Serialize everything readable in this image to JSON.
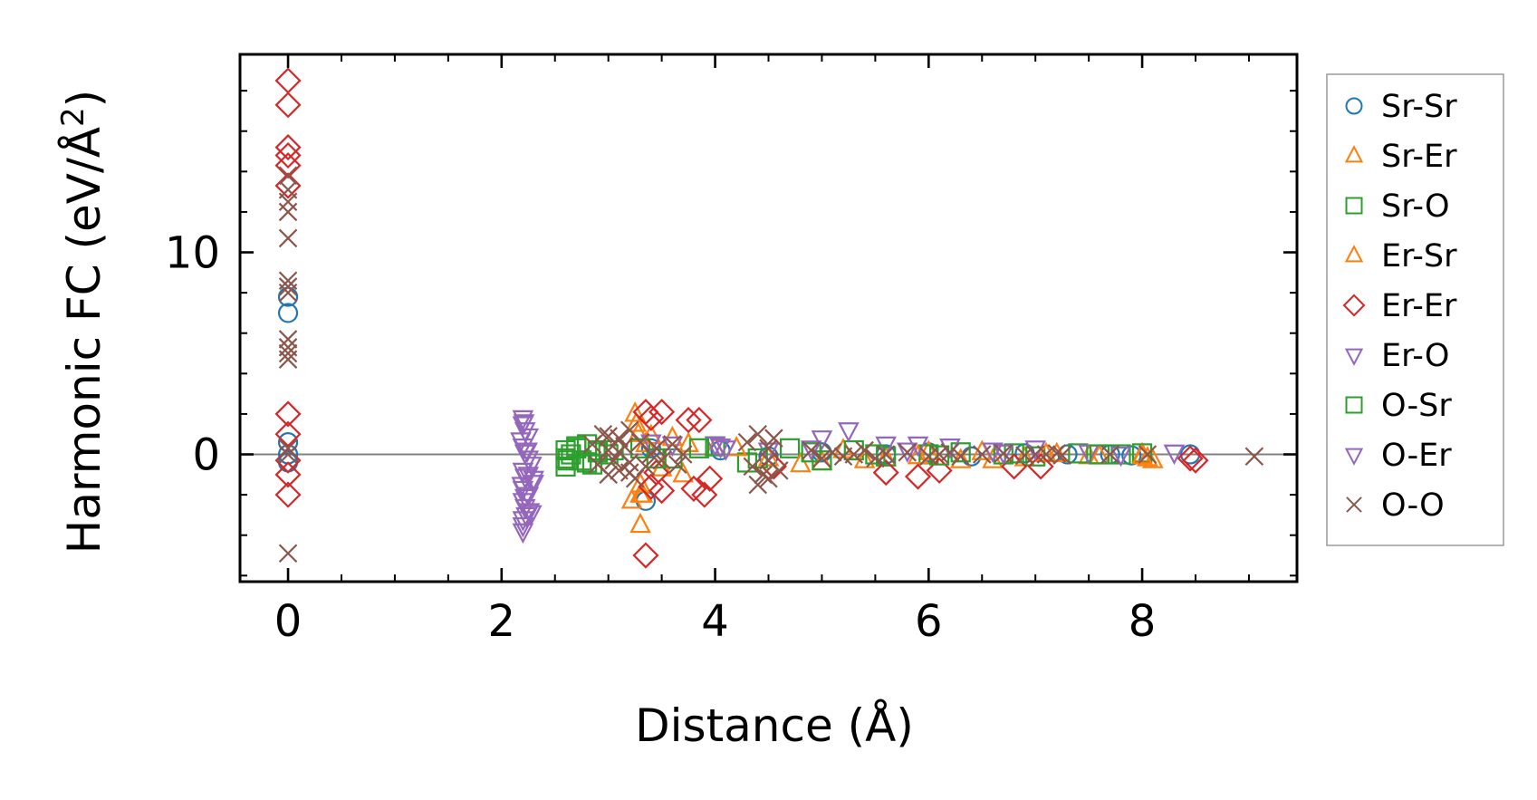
{
  "chart_data": {
    "type": "scatter",
    "xlabel": "Distance (Å)",
    "ylabel": "Harmonic FC (eV/Å²)",
    "ylabel_parts": [
      "Harmonic FC (eV/Å",
      "2",
      ")"
    ],
    "xlim": [
      -0.45,
      9.45
    ],
    "ylim": [
      -6.3,
      19.8
    ],
    "xticks": [
      0,
      2,
      4,
      6,
      8
    ],
    "xtick_labels": [
      "0",
      "2",
      "4",
      "6",
      "8"
    ],
    "yticks": [
      0,
      10
    ],
    "ytick_labels": [
      "0",
      "10"
    ],
    "x_minor_step": 0.5,
    "y_minor_step": 2,
    "zero_line": true,
    "grid": false,
    "legend_position": "outside-right",
    "series": [
      {
        "name": "Sr-Sr",
        "marker": "circle",
        "color": "#1f77b4",
        "x": [
          0,
          0,
          0,
          0,
          0,
          3.35,
          3.4,
          4.05,
          4.5,
          5.0,
          5.6,
          6.0,
          6.4,
          6.9,
          7.3,
          7.7,
          7.9,
          8.45
        ],
        "y": [
          7.8,
          7.0,
          0.6,
          0.0,
          -0.4,
          -2.3,
          0.3,
          0.2,
          -0.1,
          0.1,
          0.0,
          0.1,
          -0.1,
          0.05,
          0.0,
          0.0,
          -0.05,
          0.0
        ]
      },
      {
        "name": "Sr-Er",
        "marker": "triangle-up",
        "color": "#ff7f0e",
        "x": [
          3.25,
          3.28,
          3.3,
          3.32,
          3.22,
          3.3,
          3.35,
          3.6,
          3.7,
          4.0,
          4.5,
          5.0,
          5.2,
          5.6,
          6.0,
          6.3,
          6.6,
          6.9,
          7.2,
          7.5,
          8.0,
          8.05,
          8.1
        ],
        "y": [
          2.0,
          1.0,
          -1.5,
          -2.0,
          -2.3,
          -3.5,
          0.5,
          0.8,
          -1.0,
          0.3,
          -0.2,
          -0.4,
          0.2,
          -0.2,
          0.1,
          -0.3,
          -0.3,
          -0.2,
          0.0,
          -0.1,
          0.0,
          -0.2,
          -0.3
        ]
      },
      {
        "name": "Sr-O",
        "marker": "square",
        "color": "#2ca02c",
        "x": [
          2.6,
          2.6,
          2.6,
          2.65,
          2.7,
          2.75,
          2.8,
          2.85,
          2.9,
          3.0,
          3.3,
          3.6,
          4.0,
          4.3,
          4.7,
          5.0,
          5.3,
          5.6,
          6.0,
          6.3,
          6.7,
          7.0,
          7.4,
          7.8,
          8.0
        ],
        "y": [
          0.2,
          -0.2,
          -0.6,
          0.0,
          0.3,
          -0.3,
          0.5,
          -0.5,
          0.2,
          0.0,
          0.3,
          -0.2,
          0.4,
          -0.4,
          0.3,
          -0.3,
          0.2,
          -0.1,
          0.0,
          0.1,
          0.0,
          -0.1,
          0.05,
          0.0,
          0.05
        ]
      },
      {
        "name": "Er-Sr",
        "marker": "triangle-up",
        "color": "#ff7f0e",
        "x": [
          3.26,
          3.3,
          3.4,
          3.5,
          3.75,
          4.2,
          4.8,
          5.4,
          5.9,
          6.5,
          7.1,
          7.6,
          8.0
        ],
        "y": [
          1.5,
          -2.0,
          0.9,
          -0.7,
          0.5,
          0.3,
          -0.5,
          -0.3,
          -0.1,
          0.1,
          0.0,
          -0.1,
          -0.1
        ]
      },
      {
        "name": "Er-Er",
        "marker": "diamond",
        "color": "#d62728",
        "x": [
          0,
          0,
          0,
          0,
          0,
          0,
          0,
          0,
          0,
          0,
          0,
          3.35,
          3.35,
          3.4,
          3.45,
          3.5,
          3.4,
          3.5,
          3.75,
          3.85,
          3.95,
          3.8,
          3.9,
          4.55,
          5.6,
          5.9,
          6.1,
          6.8,
          7.05,
          8.45,
          8.5
        ],
        "y": [
          18.5,
          17.3,
          15.2,
          14.8,
          14.3,
          13.3,
          2.0,
          1.0,
          -0.3,
          -1.0,
          -2.0,
          -5.0,
          2.1,
          1.8,
          -0.9,
          -1.8,
          -1.6,
          2.1,
          1.7,
          1.7,
          -1.2,
          -1.7,
          -2.0,
          -0.6,
          -0.9,
          -1.1,
          -0.8,
          -0.6,
          -0.6,
          -0.2,
          -0.3
        ]
      },
      {
        "name": "Er-O",
        "marker": "triangle-down",
        "color": "#9467bd",
        "x": [
          2.2,
          2.2,
          2.22,
          2.25,
          2.18,
          2.2,
          2.22,
          2.25,
          2.28,
          2.2,
          2.22,
          2.3,
          2.2,
          2.25,
          2.2,
          2.22,
          2.28,
          2.3,
          2.2,
          2.25,
          2.2,
          2.22,
          2.2,
          3.4,
          3.6,
          4.0,
          4.1,
          4.5,
          5.0,
          5.25,
          5.6,
          5.9,
          6.2,
          6.6,
          7.0,
          7.5,
          8.3
        ],
        "y": [
          1.8,
          1.5,
          1.2,
          0.9,
          0.7,
          0.4,
          0.1,
          -0.2,
          -0.5,
          -0.8,
          -1.1,
          -1.4,
          -1.7,
          -2.0,
          -2.3,
          -2.6,
          -2.9,
          -1.2,
          -3.2,
          -1.0,
          -3.5,
          -2.1,
          -3.8,
          0.6,
          0.5,
          0.5,
          0.3,
          0.2,
          0.8,
          1.2,
          0.5,
          0.5,
          0.4,
          0.2,
          0.3,
          0.1,
          0.1
        ]
      },
      {
        "name": "O-Sr",
        "marker": "square",
        "color": "#2ca02c",
        "x": [
          2.62,
          2.7,
          2.8,
          2.9,
          3.05,
          3.45,
          3.85,
          4.4,
          4.9,
          5.5,
          6.1,
          6.8,
          7.6
        ],
        "y": [
          -0.3,
          0.4,
          -0.4,
          0.1,
          0.2,
          -0.2,
          0.3,
          -0.2,
          0.1,
          0.0,
          -0.05,
          0.05,
          0.0
        ]
      },
      {
        "name": "O-Er",
        "marker": "triangle-down",
        "color": "#9467bd",
        "x": [
          2.21,
          2.24,
          2.19,
          2.26,
          2.23,
          4.05,
          4.9,
          5.8,
          6.7,
          7.8
        ],
        "y": [
          1.6,
          0.2,
          -1.5,
          -2.8,
          -3.0,
          0.4,
          0.3,
          0.2,
          0.1,
          0.0
        ]
      },
      {
        "name": "O-O",
        "marker": "x",
        "color": "#8c564b",
        "x": [
          0,
          0,
          0,
          0,
          0,
          0,
          0,
          0,
          0,
          0,
          0,
          0,
          0,
          0,
          0,
          2.85,
          2.9,
          2.95,
          3.0,
          3.0,
          3.05,
          3.1,
          3.1,
          3.15,
          3.2,
          3.2,
          3.25,
          3.3,
          3.35,
          3.4,
          3.45,
          3.5,
          3.6,
          3.65,
          3.7,
          3.0,
          3.2,
          3.1,
          4.3,
          4.35,
          4.4,
          4.45,
          4.5,
          4.5,
          4.55,
          4.6,
          4.4,
          4.5,
          4.9,
          5.0,
          5.1,
          5.2,
          5.3,
          5.4,
          5.5,
          5.6,
          5.8,
          6.0,
          6.1,
          6.2,
          6.3,
          6.5,
          6.7,
          6.9,
          7.0,
          7.1,
          7.2,
          7.25,
          7.7,
          8.05,
          9.05
        ],
        "y": [
          13.8,
          13.1,
          12.5,
          12.0,
          10.7,
          8.6,
          8.3,
          8.0,
          5.7,
          5.3,
          5.0,
          4.7,
          0.3,
          0.0,
          -4.9,
          0.5,
          -0.5,
          1.0,
          -1.0,
          0.2,
          -0.3,
          0.8,
          -0.8,
          0.4,
          -0.4,
          1.2,
          -1.2,
          0.6,
          -0.6,
          0.0,
          0.3,
          -0.3,
          0.5,
          -0.5,
          0.0,
          0.9,
          -0.9,
          0.1,
          0.6,
          -0.6,
          1.0,
          -1.0,
          0.3,
          -0.3,
          0.8,
          -0.8,
          -1.5,
          -1.2,
          0.2,
          -0.2,
          0.1,
          -0.1,
          0.0,
          0.2,
          -0.2,
          0.0,
          0.1,
          -0.1,
          0.0,
          0.1,
          -0.1,
          0.0,
          0.05,
          -0.05,
          0.0,
          0.0,
          0.05,
          -0.05,
          0.0,
          0.0,
          -0.1
        ]
      }
    ]
  }
}
